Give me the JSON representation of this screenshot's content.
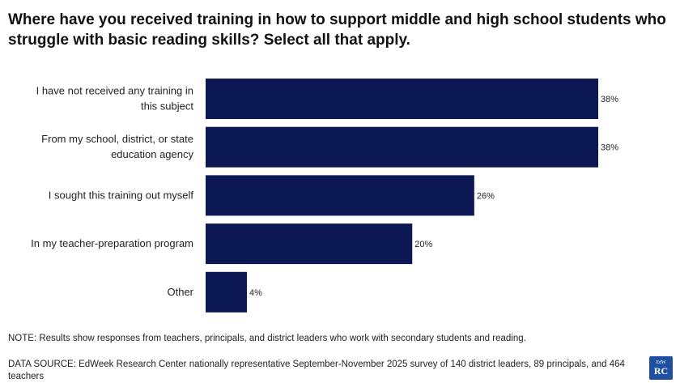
{
  "chart_data": {
    "type": "bar",
    "orientation": "horizontal",
    "title": "Where have you received training in how to support middle and high school students who struggle with basic reading skills? Select all that apply.",
    "categories": [
      [
        "I have not received any training in",
        "this subject"
      ],
      [
        "From my school, district, or state",
        "education agency"
      ],
      [
        "I sought this training out myself"
      ],
      [
        "In my teacher-preparation program"
      ],
      [
        "Other"
      ]
    ],
    "values": [
      38,
      38,
      26,
      20,
      4
    ],
    "value_labels": [
      "38%",
      "38%",
      "26%",
      "20%",
      "4%"
    ],
    "xlim": [
      0,
      40
    ],
    "bar_color": "#0b1854",
    "grid": false,
    "legend": "none"
  },
  "note": "NOTE: Results show responses from teachers, principals, and district leaders who work with secondary students and reading.",
  "source": "DATA SOURCE: EdWeek Research Center nationally representative September-November 2025 survey of 140 district leaders, 89 principals, and 464 teachers",
  "logo": {
    "line1": "EdW",
    "line2": "RC"
  }
}
